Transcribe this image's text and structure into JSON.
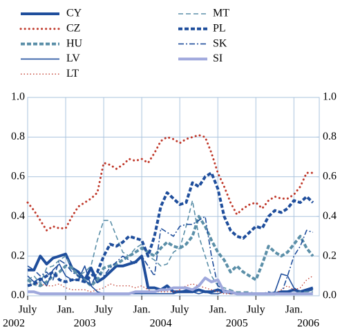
{
  "chart_data": {
    "type": "line",
    "categories": [
      "2002-07",
      "2002-08",
      "2002-09",
      "2002-10",
      "2002-11",
      "2002-12",
      "2003-01",
      "2003-02",
      "2003-03",
      "2003-04",
      "2003-05",
      "2003-06",
      "2003-07",
      "2003-08",
      "2003-09",
      "2003-10",
      "2003-11",
      "2003-12",
      "2004-01",
      "2004-02",
      "2004-03",
      "2004-04",
      "2004-05",
      "2004-06",
      "2004-07",
      "2004-08",
      "2004-09",
      "2004-10",
      "2004-11",
      "2004-12",
      "2005-01",
      "2005-02",
      "2005-03",
      "2005-04",
      "2005-05",
      "2005-06",
      "2005-07",
      "2005-08",
      "2005-09",
      "2005-10",
      "2005-11",
      "2005-12",
      "2006-01",
      "2006-02",
      "2006-03",
      "2006-04"
    ],
    "series": [
      {
        "name": "CY",
        "color": "#1f4e9c",
        "style": "solid",
        "weight": "thick",
        "values": [
          0.13,
          0.13,
          0.2,
          0.16,
          0.19,
          0.2,
          0.21,
          0.14,
          0.12,
          0.08,
          0.14,
          0.07,
          0.09,
          0.12,
          0.15,
          0.15,
          0.16,
          0.17,
          0.2,
          0.04,
          0.04,
          0.03,
          0.05,
          0.02,
          0.02,
          0.02,
          0.02,
          0.03,
          0.02,
          0.02,
          0.03,
          0.02,
          0.02,
          0.01,
          0.01,
          0.01,
          0.01,
          0.01,
          0.01,
          0.01,
          0.02,
          0.02,
          0.03,
          0.02,
          0.03,
          0.04
        ]
      },
      {
        "name": "CZ",
        "color": "#c0392b",
        "style": "dotted",
        "weight": "thick",
        "values": [
          0.47,
          0.43,
          0.38,
          0.33,
          0.35,
          0.34,
          0.34,
          0.4,
          0.45,
          0.47,
          0.49,
          0.52,
          0.67,
          0.66,
          0.64,
          0.66,
          0.69,
          0.68,
          0.69,
          0.67,
          0.72,
          0.78,
          0.8,
          0.79,
          0.77,
          0.79,
          0.8,
          0.81,
          0.8,
          0.72,
          0.62,
          0.55,
          0.47,
          0.41,
          0.44,
          0.46,
          0.47,
          0.44,
          0.48,
          0.5,
          0.49,
          0.49,
          0.51,
          0.55,
          0.62,
          0.62
        ]
      },
      {
        "name": "HU",
        "color": "#5b8fa8",
        "style": "dashed",
        "weight": "thick",
        "values": [
          0.08,
          0.06,
          0.05,
          0.07,
          0.1,
          0.12,
          0.15,
          0.14,
          0.1,
          0.08,
          0.05,
          0.08,
          0.14,
          0.15,
          0.16,
          0.18,
          0.2,
          0.22,
          0.24,
          0.22,
          0.2,
          0.24,
          0.27,
          0.25,
          0.24,
          0.26,
          0.3,
          0.4,
          0.35,
          0.28,
          0.22,
          0.18,
          0.12,
          0.15,
          0.12,
          0.1,
          0.08,
          0.16,
          0.25,
          0.22,
          0.2,
          0.22,
          0.26,
          0.3,
          0.24,
          0.2
        ]
      },
      {
        "name": "LV",
        "color": "#1f4e9c",
        "style": "solid",
        "weight": "thin",
        "values": [
          0.1,
          0.07,
          0.09,
          0.05,
          0.13,
          0.16,
          0.1,
          0.08,
          0.08,
          0.15,
          0.05,
          0.02,
          0.01,
          0.01,
          0.01,
          0.01,
          0.01,
          0.01,
          0.01,
          0.01,
          0.01,
          0.01,
          0.01,
          0.01,
          0.02,
          0.03,
          0.02,
          0.01,
          0.02,
          0.01,
          0.01,
          0.02,
          0.01,
          0.01,
          0.01,
          0.01,
          0.01,
          0.01,
          0.01,
          0.02,
          0.11,
          0.1,
          0.04,
          0.02,
          0.02,
          0.03
        ]
      },
      {
        "name": "LT",
        "color": "#c0392b",
        "style": "dotted",
        "weight": "thin",
        "values": [
          0.05,
          0.06,
          0.06,
          0.05,
          0.05,
          0.06,
          0.04,
          0.03,
          0.03,
          0.03,
          0.02,
          0.03,
          0.04,
          0.06,
          0.05,
          0.05,
          0.05,
          0.04,
          0.05,
          0.03,
          0.02,
          0.02,
          0.02,
          0.02,
          0.03,
          0.05,
          0.06,
          0.05,
          0.04,
          0.03,
          0.02,
          0.01,
          0.01,
          0.01,
          0.01,
          0.01,
          0.01,
          0.01,
          0.01,
          0.01,
          0.03,
          0.05,
          0.03,
          0.04,
          0.08,
          0.1
        ]
      },
      {
        "name": "MT",
        "color": "#5b8fa8",
        "style": "dashed",
        "weight": "thin",
        "values": [
          0.08,
          0.1,
          0.06,
          0.14,
          0.15,
          0.18,
          0.2,
          0.14,
          0.1,
          0.12,
          0.15,
          0.28,
          0.38,
          0.38,
          0.3,
          0.22,
          0.2,
          0.24,
          0.26,
          0.2,
          0.18,
          0.15,
          0.16,
          0.22,
          0.24,
          0.35,
          0.48,
          0.3,
          0.2,
          0.1,
          0.05,
          0.04,
          0.03,
          0.02,
          0.02,
          0.02,
          0.01,
          0.01,
          0.01,
          0.01,
          0.01,
          0.01,
          0.01,
          0.02,
          0.02,
          0.02
        ]
      },
      {
        "name": "PL",
        "color": "#1f4e9c",
        "style": "dashed",
        "weight": "thick",
        "values": [
          0.05,
          0.06,
          0.08,
          0.1,
          0.12,
          0.08,
          0.07,
          0.08,
          0.08,
          0.07,
          0.1,
          0.12,
          0.2,
          0.26,
          0.25,
          0.27,
          0.3,
          0.29,
          0.28,
          0.2,
          0.3,
          0.45,
          0.52,
          0.49,
          0.46,
          0.47,
          0.57,
          0.55,
          0.6,
          0.62,
          0.54,
          0.4,
          0.33,
          0.3,
          0.29,
          0.32,
          0.35,
          0.34,
          0.4,
          0.43,
          0.42,
          0.44,
          0.48,
          0.47,
          0.5,
          0.47
        ]
      },
      {
        "name": "SK",
        "color": "#1f4e9c",
        "style": "dashdot",
        "weight": "thin",
        "values": [
          0.15,
          0.13,
          0.1,
          0.12,
          0.08,
          0.18,
          0.16,
          0.12,
          0.1,
          0.08,
          0.05,
          0.12,
          0.1,
          0.14,
          0.17,
          0.2,
          0.18,
          0.16,
          0.2,
          0.15,
          0.1,
          0.34,
          0.32,
          0.3,
          0.35,
          0.36,
          0.36,
          0.38,
          0.4,
          0.2,
          0.05,
          0.03,
          0.02,
          0.01,
          0.01,
          0.01,
          0.01,
          0.01,
          0.02,
          0.01,
          0.01,
          0.1,
          0.2,
          0.25,
          0.33,
          0.32
        ]
      },
      {
        "name": "SI",
        "color": "#9fa8dc",
        "style": "solid",
        "weight": "thick",
        "values": [
          0.02,
          0.02,
          0.01,
          0.01,
          0.01,
          0.01,
          0.01,
          0.01,
          0.01,
          0.01,
          0.01,
          0.01,
          0.01,
          0.01,
          0.01,
          0.01,
          0.01,
          0.02,
          0.02,
          0.02,
          0.02,
          0.03,
          0.03,
          0.04,
          0.04,
          0.04,
          0.03,
          0.05,
          0.09,
          0.07,
          0.08,
          0.02,
          0.02,
          0.01,
          0.01,
          0.01,
          0.01,
          0.01,
          0.01,
          0.01,
          0.01,
          0.01,
          0.01,
          0.01,
          0.01,
          0.01
        ]
      }
    ],
    "xticks": [
      {
        "value": "2002-07",
        "label": "July"
      },
      {
        "value": "2003-01",
        "label": "Jan."
      },
      {
        "value": "2003-07",
        "label": "July"
      },
      {
        "value": "2004-01",
        "label": "Jan."
      },
      {
        "value": "2004-07",
        "label": "July"
      },
      {
        "value": "2005-01",
        "label": "Jan."
      },
      {
        "value": "2005-07",
        "label": "July"
      },
      {
        "value": "2006-01",
        "label": "Jan."
      }
    ],
    "years": [
      "2002",
      "2003",
      "2004",
      "2005",
      "2006"
    ],
    "ylim": [
      0,
      1
    ],
    "yticks": [
      {
        "value": 0,
        "label": "0.0"
      },
      0.2,
      0.4,
      0.6,
      0.8,
      {
        "value": 1,
        "label": "1.0"
      }
    ],
    "y2lim": [
      0,
      1
    ],
    "y2ticks": [
      {
        "value": 0,
        "label": "0.0"
      },
      0.2,
      0.4,
      0.6,
      0.8,
      {
        "value": 1,
        "label": "1.0"
      }
    ],
    "grid": true
  }
}
